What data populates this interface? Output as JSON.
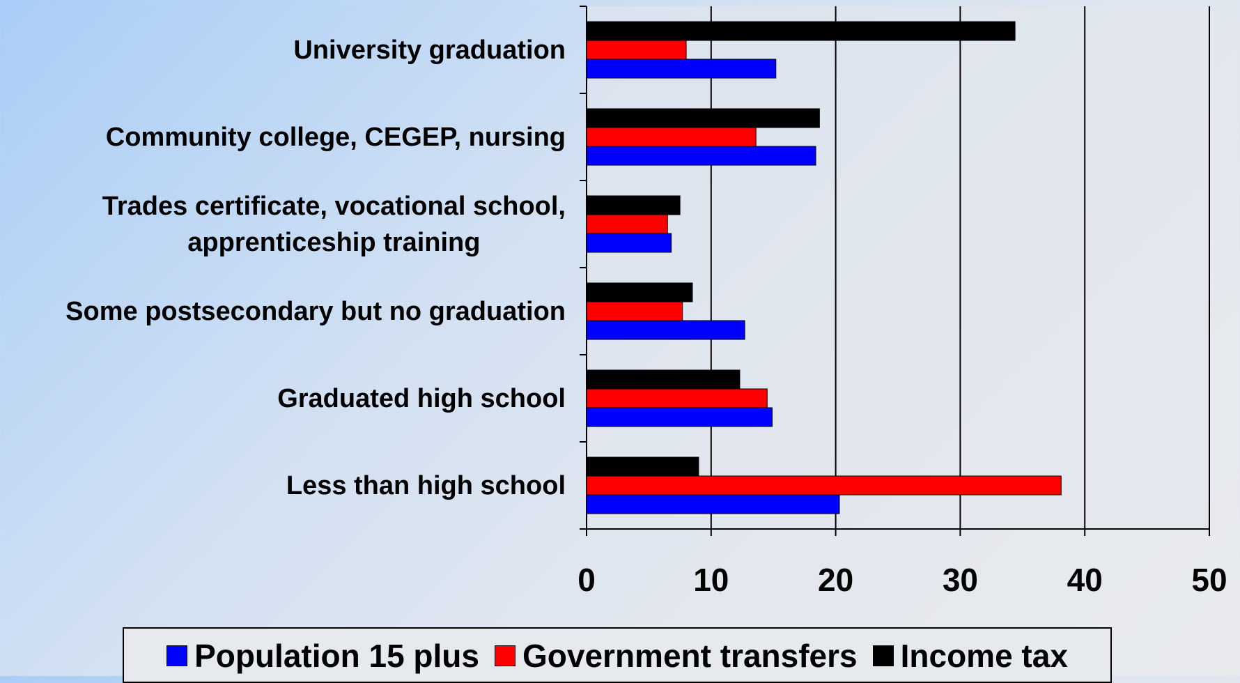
{
  "chart_data": {
    "type": "hbar",
    "categories": [
      "University graduation",
      "Community college, CEGEP, nursing",
      "Trades certificate, vocational school,\napprenticeship training",
      "Some postsecondary but no graduation",
      "Graduated high school",
      "Less than high school"
    ],
    "series": [
      {
        "name": "Population 15 plus",
        "color": "#0000ff",
        "values": [
          15.2,
          18.4,
          6.8,
          12.7,
          14.9,
          20.3
        ]
      },
      {
        "name": "Government transfers",
        "color": "#ff0000",
        "values": [
          8.0,
          13.6,
          6.5,
          7.7,
          14.5,
          38.1
        ]
      },
      {
        "name": "Income tax",
        "color": "#000000",
        "values": [
          34.4,
          18.7,
          7.5,
          8.5,
          12.3,
          9.0
        ]
      }
    ],
    "xlim": [
      0,
      50
    ],
    "xticks": [
      0,
      10,
      20,
      30,
      40,
      50
    ],
    "grid": true,
    "legend": "bottom"
  }
}
